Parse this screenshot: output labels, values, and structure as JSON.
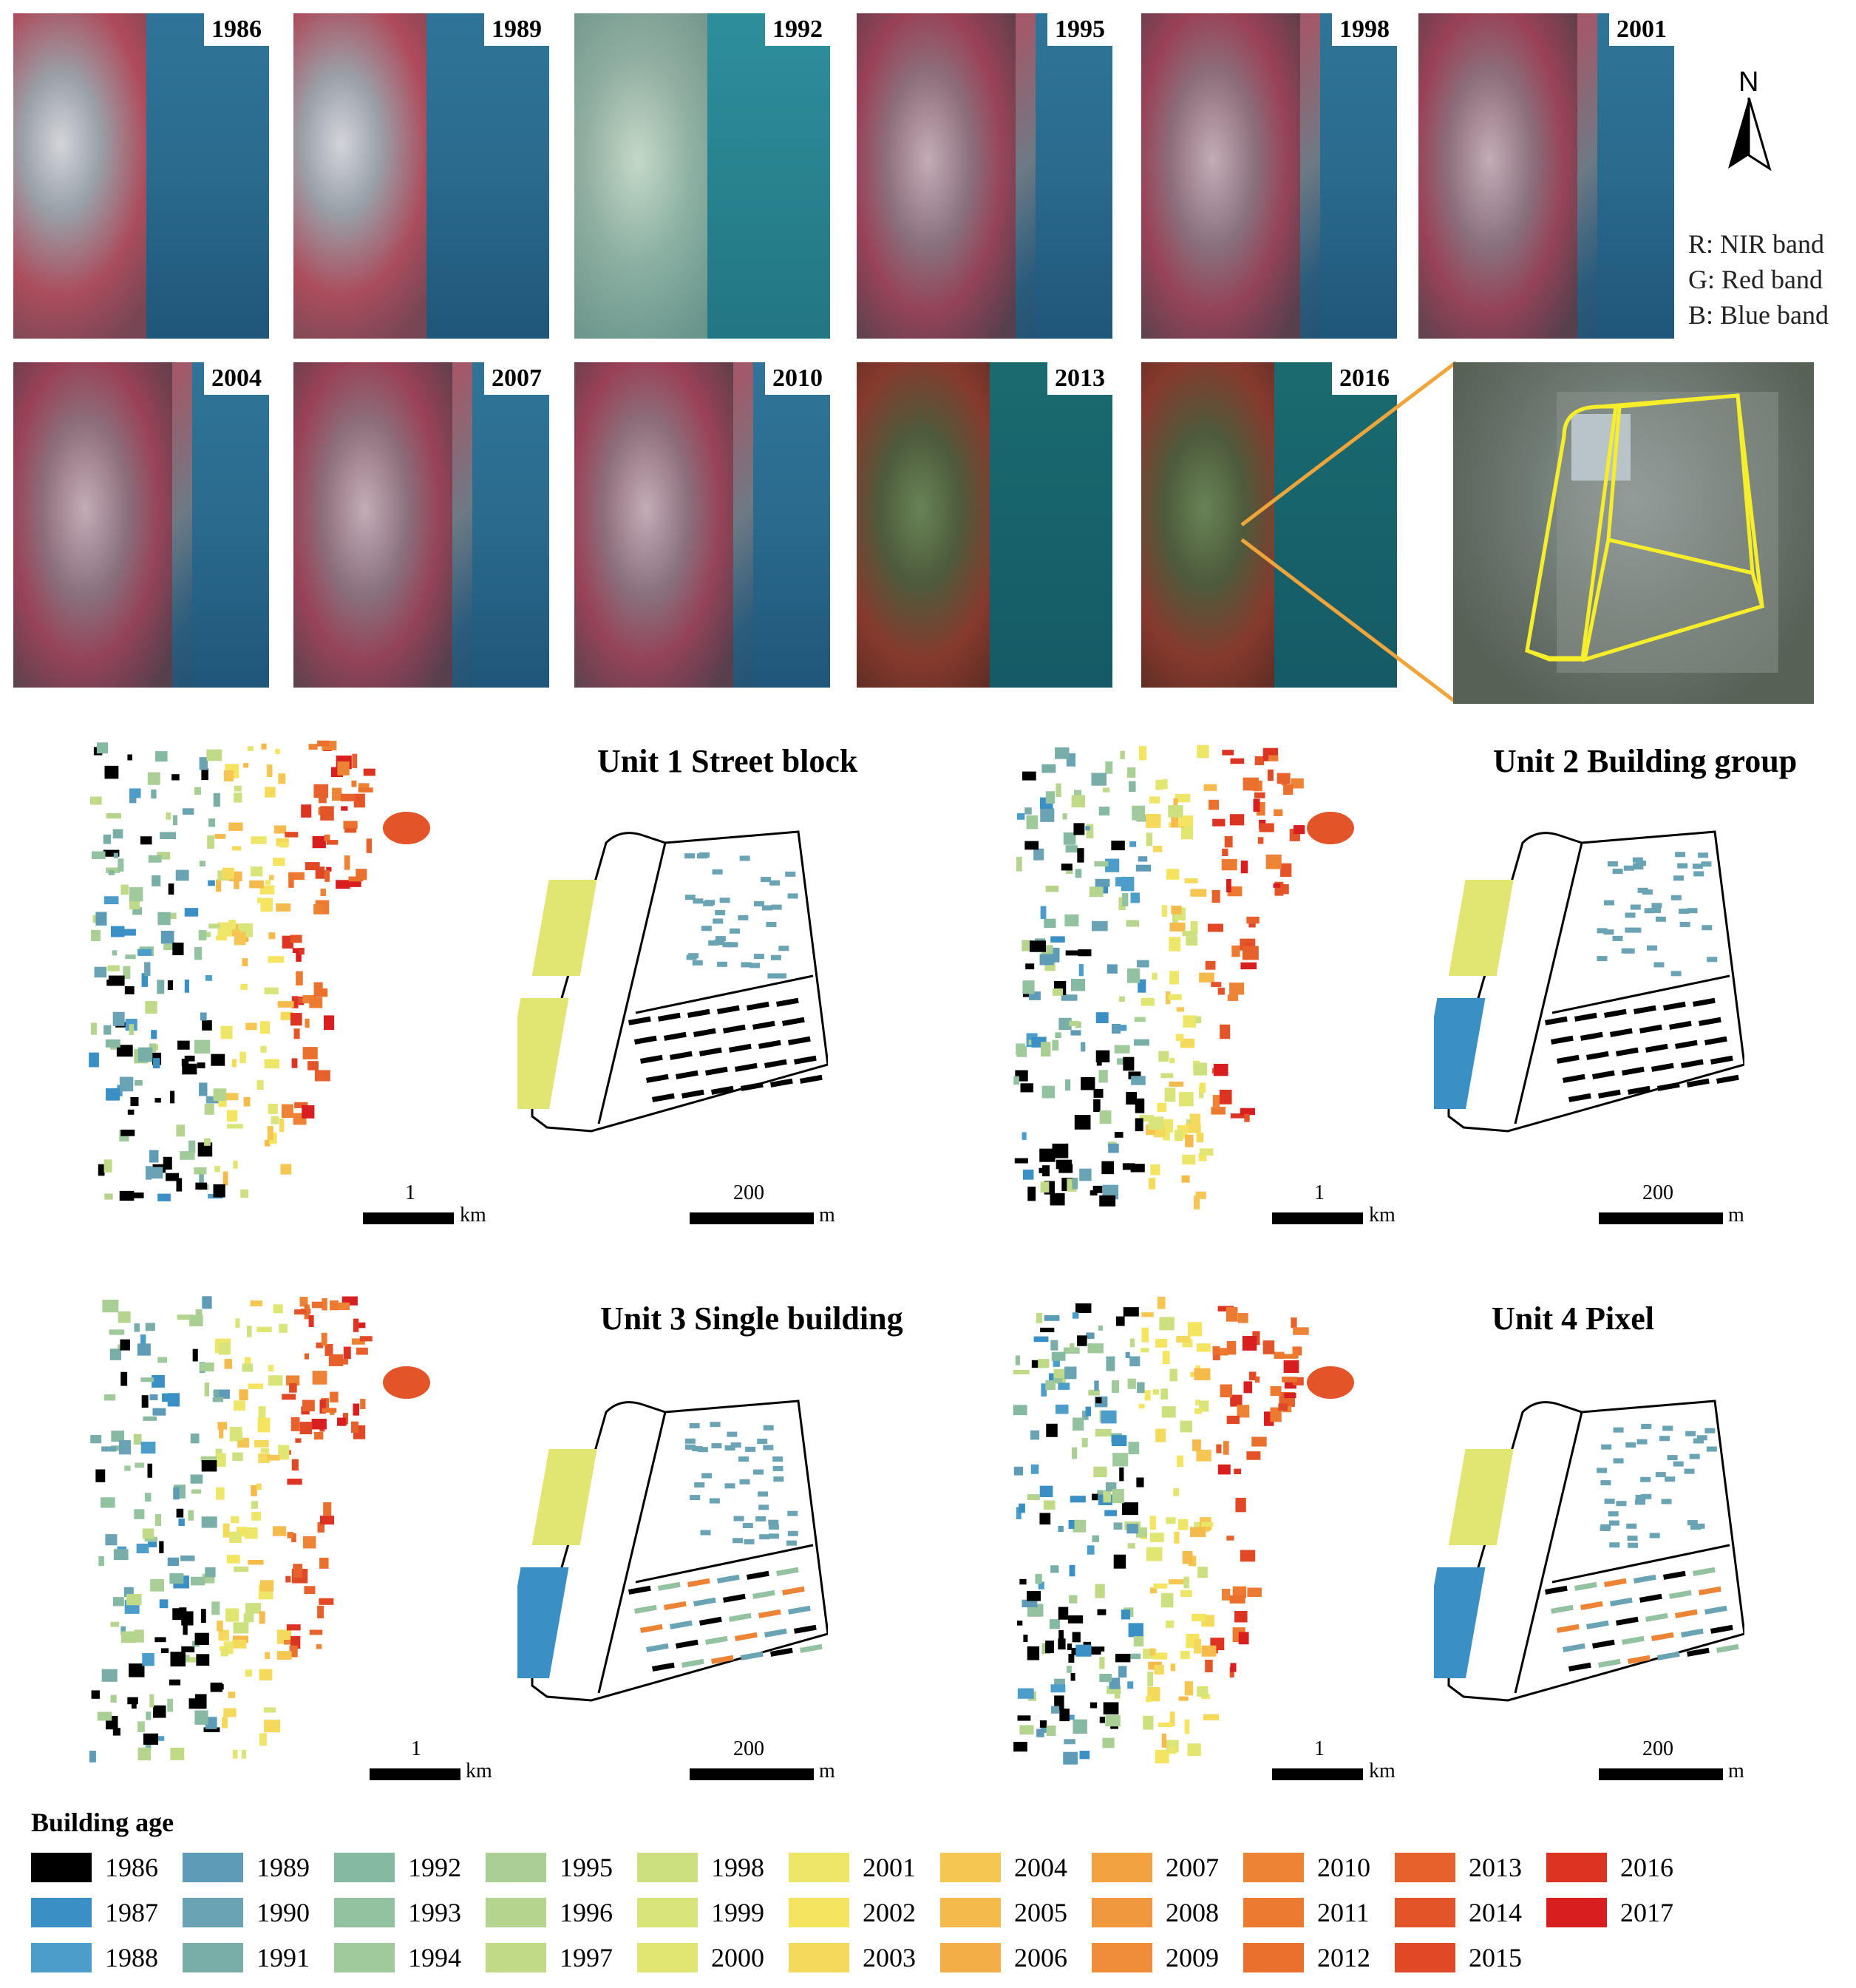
{
  "satellite": {
    "years_row1": [
      "1986",
      "1989",
      "1992",
      "1995",
      "1998",
      "2001"
    ],
    "years_row2": [
      "2004",
      "2007",
      "2010",
      "2013",
      "2016"
    ]
  },
  "north": {
    "label": "N"
  },
  "bands": [
    "R: NIR band",
    "G: Red band",
    "B: Blue band"
  ],
  "units": [
    {
      "title": "Unit 1 Street block",
      "km_label": "1",
      "km_unit": "km",
      "m_label": "200",
      "m_unit": "m"
    },
    {
      "title": "Unit 2 Building group",
      "km_label": "1",
      "km_unit": "km",
      "m_label": "200",
      "m_unit": "m"
    },
    {
      "title": "Unit 3 Single building",
      "km_label": "1",
      "km_unit": "km",
      "m_label": "200",
      "m_unit": "m"
    },
    {
      "title": "Unit 4 Pixel",
      "km_label": "1",
      "km_unit": "km",
      "m_label": "200",
      "m_unit": "m"
    }
  ],
  "legend": {
    "title": "Building age",
    "items": [
      {
        "year": "1986",
        "color": "#000000"
      },
      {
        "year": "1987",
        "color": "#3a8fc4"
      },
      {
        "year": "1988",
        "color": "#4d9dcb"
      },
      {
        "year": "1989",
        "color": "#5d9bb7"
      },
      {
        "year": "1990",
        "color": "#6aa3b3"
      },
      {
        "year": "1991",
        "color": "#78ada8"
      },
      {
        "year": "1992",
        "color": "#86b9a2"
      },
      {
        "year": "1993",
        "color": "#93c2a0"
      },
      {
        "year": "1994",
        "color": "#a0c99c"
      },
      {
        "year": "1995",
        "color": "#a9cf95"
      },
      {
        "year": "1996",
        "color": "#b5d48e"
      },
      {
        "year": "1997",
        "color": "#c0da87"
      },
      {
        "year": "1998",
        "color": "#cde07f"
      },
      {
        "year": "1999",
        "color": "#d9e47a"
      },
      {
        "year": "2000",
        "color": "#e1e572"
      },
      {
        "year": "2001",
        "color": "#eee668"
      },
      {
        "year": "2002",
        "color": "#f4e45f"
      },
      {
        "year": "2003",
        "color": "#f5d95a"
      },
      {
        "year": "2004",
        "color": "#f5c652"
      },
      {
        "year": "2005",
        "color": "#f4ba4b"
      },
      {
        "year": "2006",
        "color": "#f3ae47"
      },
      {
        "year": "2007",
        "color": "#f2a241"
      },
      {
        "year": "2008",
        "color": "#f0983d"
      },
      {
        "year": "2009",
        "color": "#ef8d39"
      },
      {
        "year": "2010",
        "color": "#ed8435"
      },
      {
        "year": "2011",
        "color": "#ec7a31"
      },
      {
        "year": "2012",
        "color": "#ea702e"
      },
      {
        "year": "2013",
        "color": "#e6612b"
      },
      {
        "year": "2014",
        "color": "#e35528"
      },
      {
        "year": "2015",
        "color": "#e04826"
      },
      {
        "year": "2016",
        "color": "#dc3323"
      },
      {
        "year": "2017",
        "color": "#d81e1e"
      }
    ]
  }
}
